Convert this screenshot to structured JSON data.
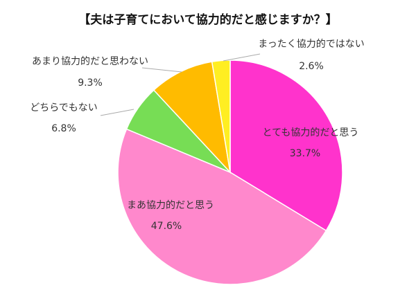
{
  "chart_data": {
    "type": "pie",
    "title": "【夫は子育てにおいて協力的だと感じますか？】",
    "slices": [
      {
        "label": "とても協力的だと思う",
        "value": 33.7,
        "value_label": "33.7%",
        "color": "#ff33cc"
      },
      {
        "label": "まあ協力的だと思う",
        "value": 47.6,
        "value_label": "47.6%",
        "color": "#ff88cc"
      },
      {
        "label": "どちらでもない",
        "value": 6.8,
        "value_label": "6.8%",
        "color": "#77dd55"
      },
      {
        "label": "あまり協力的だと思わない",
        "value": 9.3,
        "value_label": "9.3%",
        "color": "#ffbb00"
      },
      {
        "label": "まったく協力的ではない",
        "value": 2.6,
        "value_label": "2.6%",
        "color": "#ffee22"
      }
    ]
  }
}
